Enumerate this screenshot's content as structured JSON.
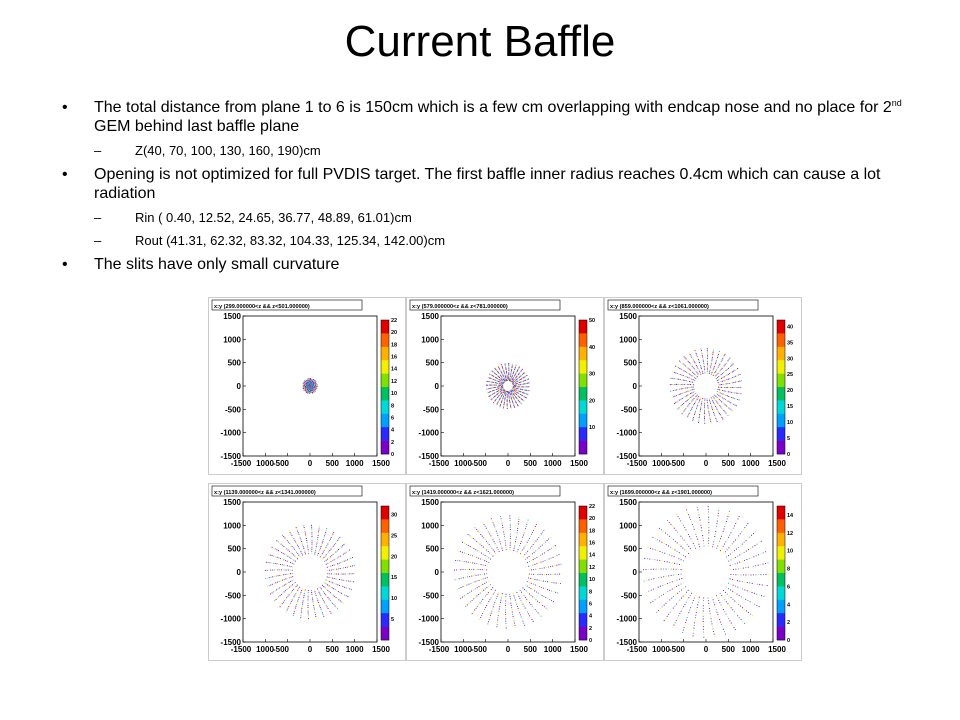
{
  "slide": {
    "title": "Current Baffle",
    "bullets": [
      {
        "text_pre": "The total distance from plane 1 to 6 is 150cm which is  a few cm overlapping with endcap nose and no place for 2",
        "sup": "nd",
        "text_post": " GEM behind last baffle plane",
        "sub": [
          "Z(40, 70, 100, 130, 160, 190)cm"
        ]
      },
      {
        "text": "Opening is not optimized for full PVDIS target. The first baffle inner radius reaches 0.4cm which can cause a lot radiation",
        "sub": [
          "Rin ( 0.40, 12.52, 24.65, 36.77, 48.89, 61.01)cm",
          "Rout (41.31, 62.32, 83.32, 104.33, 125.34, 142.00)cm"
        ]
      },
      {
        "text": "The slits have only small curvature",
        "sub": []
      }
    ]
  },
  "chart_data": [
    {
      "type": "scatter",
      "title": "x:y (299.000000<z && z<501.000000)",
      "xlim": [
        -1500,
        1500
      ],
      "ylim": [
        -1500,
        1500
      ],
      "x_ticks": [
        "-1500",
        "1000",
        "-500",
        "0",
        "500",
        "1000",
        "1500"
      ],
      "y_ticks": [
        "1500",
        "1000",
        "500",
        "0",
        "-500",
        "-1000",
        "-1500"
      ],
      "rin": 0,
      "rout": 160,
      "colorbar_ticks": [
        22,
        20,
        18,
        16,
        14,
        12,
        10,
        8,
        6,
        4,
        2,
        0
      ],
      "colorbar_max": 22
    },
    {
      "type": "scatter",
      "title": "x:y (579.000000<z && z<781.000000)",
      "xlim": [
        -1500,
        1500
      ],
      "ylim": [
        -1500,
        1500
      ],
      "x_ticks": [
        "-1500",
        "1000",
        "-500",
        "0",
        "500",
        "1000",
        "1500"
      ],
      "y_ticks": [
        "1500",
        "1000",
        "500",
        "0",
        "-500",
        "-1000",
        "-1500"
      ],
      "rin": 120,
      "rout": 480,
      "colorbar_ticks": [
        50,
        40,
        30,
        20,
        10
      ],
      "colorbar_max": 50
    },
    {
      "type": "scatter",
      "title": "x:y (859.000000<z && z<1061.000000)",
      "xlim": [
        -1500,
        1500
      ],
      "ylim": [
        -1500,
        1500
      ],
      "x_ticks": [
        "-1500",
        "1000",
        "-500",
        "0",
        "500",
        "1000",
        "1500"
      ],
      "y_ticks": [
        "1500",
        "1000",
        "500",
        "0",
        "-500",
        "-1000",
        "-1500"
      ],
      "rin": 280,
      "rout": 800,
      "colorbar_ticks": [
        40,
        35,
        30,
        25,
        20,
        15,
        10,
        5,
        0
      ],
      "colorbar_max": 42
    },
    {
      "type": "scatter",
      "title": "x:y (1139.000000<z && z<1341.000000)",
      "xlim": [
        -1500,
        1500
      ],
      "ylim": [
        -1500,
        1500
      ],
      "x_ticks": [
        "-1500",
        "1000",
        "-500",
        "0",
        "500",
        "1000",
        "1500"
      ],
      "y_ticks": [
        "1500",
        "1000",
        "500",
        "0",
        "-500",
        "-1000",
        "-1500"
      ],
      "rin": 400,
      "rout": 1000,
      "colorbar_ticks": [
        30,
        25,
        20,
        15,
        10,
        5
      ],
      "colorbar_max": 32
    },
    {
      "type": "scatter",
      "title": "x:y (1419.000000<z && z<1621.000000)",
      "xlim": [
        -1500,
        1500
      ],
      "ylim": [
        -1500,
        1500
      ],
      "x_ticks": [
        "-1500",
        "1000",
        "-500",
        "0",
        "500",
        "1000",
        "1500"
      ],
      "y_ticks": [
        "1500",
        "1000",
        "500",
        "0",
        "-500",
        "-1000",
        "-1500"
      ],
      "rin": 480,
      "rout": 1200,
      "colorbar_ticks": [
        22,
        20,
        18,
        16,
        14,
        12,
        10,
        8,
        6,
        4,
        2,
        0
      ],
      "colorbar_max": 22
    },
    {
      "type": "scatter",
      "title": "x:y (1699.000000<z && z<1901.000000)",
      "xlim": [
        -1500,
        1500
      ],
      "ylim": [
        -1500,
        1500
      ],
      "x_ticks": [
        "-1500",
        "1000",
        "-500",
        "0",
        "500",
        "1000",
        "1500"
      ],
      "y_ticks": [
        "1500",
        "1000",
        "500",
        "0",
        "-500",
        "-1000",
        "-1500"
      ],
      "rin": 560,
      "rout": 1400,
      "colorbar_ticks": [
        14,
        12,
        10,
        8,
        6,
        4,
        2,
        0
      ],
      "colorbar_max": 15
    }
  ]
}
